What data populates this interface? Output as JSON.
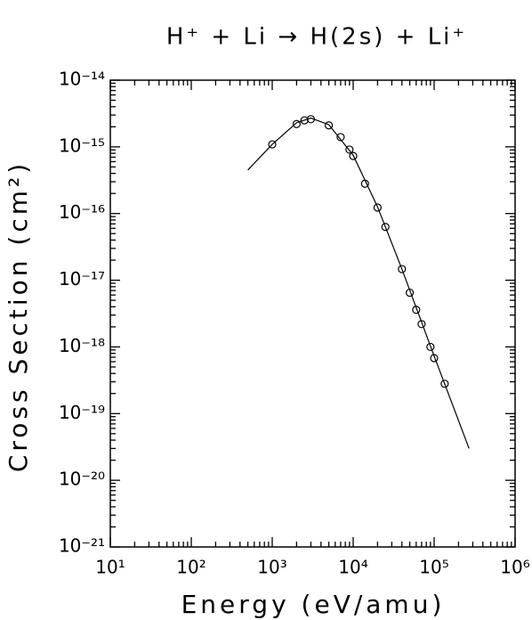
{
  "chart_data": {
    "type": "scatter",
    "title": "H⁺ + Li → H(2s) + Li⁺",
    "x_label": "Energy (eV/amu)",
    "y_label": "Cross Section (cm²)",
    "x_scale": "log",
    "y_scale": "log",
    "minor_ticks": true,
    "xlim": [
      10,
      1000000
    ],
    "ylim": [
      1e-21,
      1e-14
    ],
    "xticks": [
      {
        "value": 10,
        "label": "10¹"
      },
      {
        "value": 100,
        "label": "10²"
      },
      {
        "value": 1000,
        "label": "10³"
      },
      {
        "value": 10000,
        "label": "10⁴"
      },
      {
        "value": 100000,
        "label": "10⁵"
      },
      {
        "value": 1000000,
        "label": "10⁶"
      }
    ],
    "yticks": [
      {
        "value": 1e-21,
        "label": "10⁻²¹"
      },
      {
        "value": 1e-20,
        "label": "10⁻²⁰"
      },
      {
        "value": 1e-19,
        "label": "10⁻¹⁹"
      },
      {
        "value": 1e-18,
        "label": "10⁻¹⁸"
      },
      {
        "value": 1e-17,
        "label": "10⁻¹⁷"
      },
      {
        "value": 1e-16,
        "label": "10⁻¹⁶"
      },
      {
        "value": 1e-15,
        "label": "10⁻¹⁵"
      },
      {
        "value": 1e-14,
        "label": "10⁻¹⁴"
      }
    ],
    "series": [
      {
        "style": "markers",
        "color": "#000000",
        "x": [
          1000,
          2000,
          2500,
          3000,
          5000,
          7000,
          9000,
          10000,
          14000,
          20000,
          25000,
          40000,
          50000,
          60000,
          70000,
          90000,
          100000,
          135000
        ],
        "values": [
          1.09e-15,
          2.2e-15,
          2.5e-15,
          2.6e-15,
          2.1e-15,
          1.4e-15,
          9.1e-16,
          7.3e-16,
          2.8e-16,
          1.23e-16,
          6.3e-17,
          1.47e-17,
          6.5e-18,
          3.6e-18,
          2.2e-18,
          1e-18,
          6.8e-19,
          2.8e-19
        ]
      },
      {
        "style": "line",
        "color": "#000000",
        "x": [
          500,
          1000,
          2000,
          3000,
          5000,
          10000,
          20000,
          40000,
          100000,
          270000
        ],
        "values": [
          4.5e-16,
          1.09e-15,
          2.3e-15,
          2.7e-15,
          2.15e-15,
          7.5e-16,
          1.26e-16,
          1.47e-17,
          7.3e-19,
          3e-20
        ]
      }
    ]
  }
}
